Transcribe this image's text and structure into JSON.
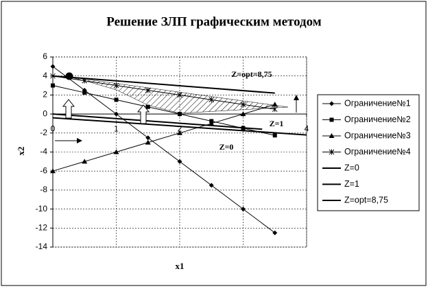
{
  "chart_data": {
    "type": "line",
    "title": "Решение ЗЛП графическим методом",
    "x_label": "x1",
    "y_label": "x2",
    "xlim": [
      0,
      4
    ],
    "ylim": [
      -14,
      6
    ],
    "xticks": [
      0,
      1,
      2,
      3,
      4
    ],
    "yticks": [
      -14,
      -12,
      -10,
      -8,
      -6,
      -4,
      -2,
      0,
      2,
      4,
      6
    ],
    "grid": true,
    "legend": "right",
    "series": [
      {
        "name": "Ограничение№1",
        "color": "#000000",
        "marker": "diamond",
        "x": [
          0,
          0.5,
          1,
          1.5,
          2,
          2.5,
          3,
          3.5
        ],
        "values": [
          5,
          2.5,
          0,
          -2.5,
          -5,
          -7.5,
          -10,
          -12.5
        ]
      },
      {
        "name": "Ограничение№2",
        "color": "#000000",
        "marker": "square",
        "x": [
          0,
          0.5,
          1,
          1.5,
          2,
          2.5,
          3,
          3.5
        ],
        "values": [
          3,
          2.25,
          1.5,
          0.75,
          0,
          -0.75,
          -1.5,
          -2.25
        ]
      },
      {
        "name": "Ограничение№3",
        "color": "#000000",
        "marker": "triangle",
        "x": [
          0,
          0.5,
          1,
          1.5,
          2,
          2.5,
          3,
          3.5
        ],
        "values": [
          -6,
          -5,
          -4,
          -3,
          -2,
          -1,
          0,
          1
        ]
      },
      {
        "name": "Ограничение№4",
        "color": "#000000",
        "marker": "star",
        "x": [
          0,
          0.5,
          1,
          1.5,
          2,
          2.5,
          3,
          3.5
        ],
        "values": [
          4,
          3.5,
          3,
          2.5,
          2,
          1.5,
          1,
          0.5
        ]
      },
      {
        "name": "Z=0",
        "color": "#000000",
        "marker": "none",
        "x": [
          0,
          4
        ],
        "values": [
          -0.4,
          -2.2
        ]
      },
      {
        "name": "Z=1",
        "color": "#000000",
        "marker": "none",
        "x": [
          0,
          3.3
        ],
        "values": [
          0,
          -1.6
        ]
      },
      {
        "name": "Z=opt=8,75",
        "color": "#000000",
        "marker": "none",
        "x": [
          0,
          3.5
        ],
        "values": [
          4,
          2.2
        ]
      }
    ],
    "annotations": [
      "Z=opt=8,75",
      "Z=1",
      "Z=0"
    ]
  }
}
